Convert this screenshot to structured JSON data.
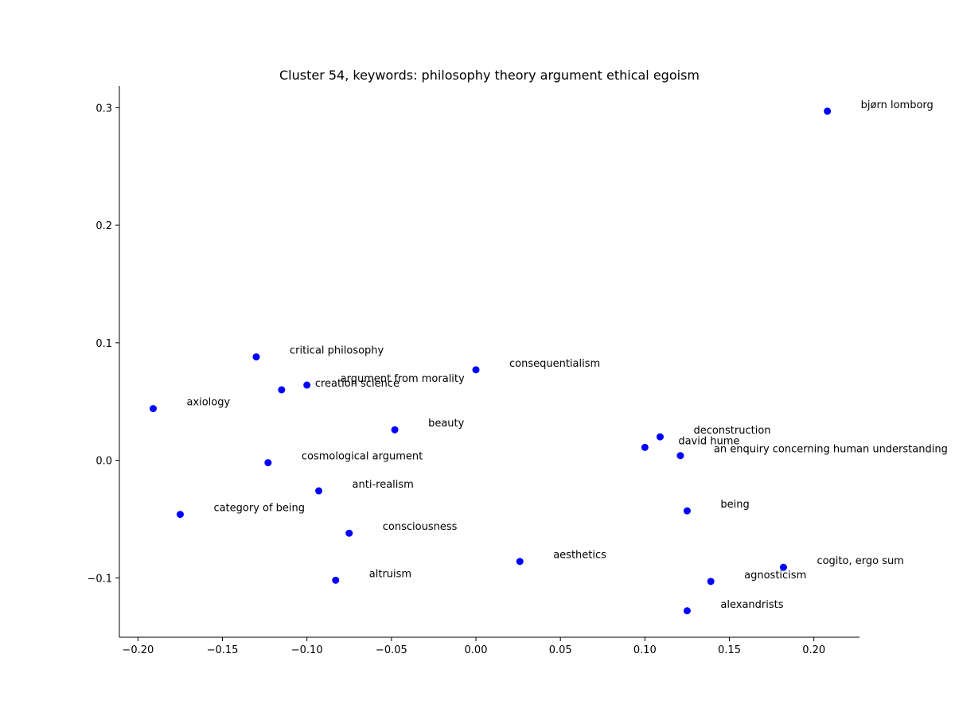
{
  "chart_data": {
    "type": "scatter",
    "title": "Cluster 54, keywords: philosophy theory argument ethical egoism",
    "xlabel": "",
    "ylabel": "",
    "xlim": [
      -0.211,
      0.227
    ],
    "ylim": [
      -0.1505,
      0.3185
    ],
    "xticks": [
      -0.2,
      -0.15,
      -0.1,
      -0.05,
      0.0,
      0.05,
      0.1,
      0.15,
      0.2
    ],
    "xtick_labels": [
      "−0.20",
      "−0.15",
      "−0.10",
      "−0.05",
      "0.00",
      "0.05",
      "0.10",
      "0.15",
      "0.20"
    ],
    "yticks": [
      -0.1,
      0.0,
      0.1,
      0.2,
      0.3
    ],
    "ytick_labels": [
      "−0.1",
      "0.0",
      "0.1",
      "0.2",
      "0.3"
    ],
    "grid": false,
    "marker_color": "#0000ff",
    "points": [
      {
        "label": "bjørn lomborg",
        "x": 0.208,
        "y": 0.297
      },
      {
        "label": "critical philosophy",
        "x": -0.13,
        "y": 0.088
      },
      {
        "label": "consequentialism",
        "x": 0.0,
        "y": 0.077
      },
      {
        "label": "creation science",
        "x": -0.115,
        "y": 0.06
      },
      {
        "label": "argument from morality",
        "x": -0.1,
        "y": 0.064
      },
      {
        "label": "axiology",
        "x": -0.191,
        "y": 0.044
      },
      {
        "label": "beauty",
        "x": -0.048,
        "y": 0.026
      },
      {
        "label": "deconstruction",
        "x": 0.109,
        "y": 0.02
      },
      {
        "label": "david hume",
        "x": 0.1,
        "y": 0.011
      },
      {
        "label": "an enquiry concerning human understanding",
        "x": 0.121,
        "y": 0.004
      },
      {
        "label": "cosmological argument",
        "x": -0.123,
        "y": -0.002
      },
      {
        "label": "anti-realism",
        "x": -0.093,
        "y": -0.026
      },
      {
        "label": "category of being",
        "x": -0.175,
        "y": -0.046
      },
      {
        "label": "being",
        "x": 0.125,
        "y": -0.043
      },
      {
        "label": "consciousness",
        "x": -0.075,
        "y": -0.062
      },
      {
        "label": "aesthetics",
        "x": 0.026,
        "y": -0.086
      },
      {
        "label": "cogito, ergo sum",
        "x": 0.182,
        "y": -0.091
      },
      {
        "label": "altruism",
        "x": -0.083,
        "y": -0.102
      },
      {
        "label": "agnosticism",
        "x": 0.139,
        "y": -0.103
      },
      {
        "label": "alexandrists",
        "x": 0.125,
        "y": -0.128
      }
    ]
  }
}
